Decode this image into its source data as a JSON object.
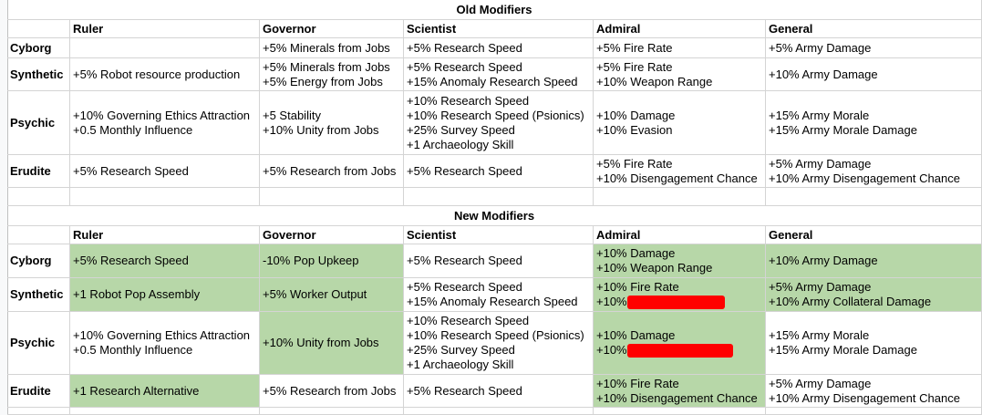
{
  "colors": {
    "highlight": "#b7d7a8",
    "redaction": "#ff0000",
    "gridline": "#d4d4d4"
  },
  "columns": [
    "",
    "Ruler",
    "Governor",
    "Scientist",
    "Admiral",
    "General"
  ],
  "old": {
    "title": "Old Modifiers",
    "rows": [
      {
        "name": "Cyborg",
        "ruler": [],
        "governor": [
          "+5% Minerals from Jobs"
        ],
        "scientist": [
          "+5% Research Speed"
        ],
        "admiral": [
          "+5% Fire Rate"
        ],
        "general": [
          "+5% Army Damage"
        ]
      },
      {
        "name": "Synthetic",
        "ruler": [
          "+5% Robot resource production"
        ],
        "governor": [
          "+5% Minerals from Jobs",
          "+5% Energy from Jobs"
        ],
        "scientist": [
          "+5% Research Speed",
          "+15% Anomaly Research Speed"
        ],
        "admiral": [
          "+5% Fire Rate",
          "+10% Weapon Range"
        ],
        "general": [
          "+10% Army Damage"
        ]
      },
      {
        "name": "Psychic",
        "ruler": [
          "+10% Governing Ethics Attraction",
          "+0.5 Monthly Influence"
        ],
        "governor": [
          "+5 Stability",
          "+10% Unity from Jobs"
        ],
        "scientist": [
          "+10% Research Speed",
          "+10% Research Speed (Psionics)",
          "+25% Survey Speed",
          "+1 Archaeology Skill"
        ],
        "admiral": [
          "+10% Damage",
          "+10% Evasion"
        ],
        "general": [
          "+15% Army Morale",
          "+15% Army Morale Damage"
        ]
      },
      {
        "name": "Erudite",
        "ruler": [
          "+5% Research Speed"
        ],
        "governor": [
          "+5% Research from Jobs"
        ],
        "scientist": [
          "+5% Research Speed"
        ],
        "admiral": [
          "+5% Fire Rate",
          "+10% Disengagement Chance"
        ],
        "general": [
          "+5% Army Damage",
          "+10% Army Disengagement Chance"
        ]
      }
    ]
  },
  "new": {
    "title": "New Modifiers",
    "rows": [
      {
        "name": "Cyborg",
        "ruler": [
          "+5% Research Speed"
        ],
        "governor": [
          "-10% Pop Upkeep"
        ],
        "scientist": [
          "+5% Research Speed"
        ],
        "admiral": [
          "+10% Damage",
          "+10% Weapon Range"
        ],
        "general": [
          "+10% Army Damage"
        ],
        "highlight": {
          "ruler": true,
          "governor": true,
          "scientist": false,
          "admiral": true,
          "general": true
        }
      },
      {
        "name": "Synthetic",
        "ruler": [
          "+1 Robot Pop Assembly"
        ],
        "governor": [
          "+5% Worker Output"
        ],
        "scientist": [
          "+5% Research Speed",
          "+15% Anomaly Research Speed"
        ],
        "admiral": [
          "+10% Fire Rate",
          "+10%"
        ],
        "general": [
          "+5% Army Damage",
          "+10% Army Collateral Damage"
        ],
        "highlight": {
          "ruler": true,
          "governor": true,
          "scientist": false,
          "admiral": true,
          "general": true
        },
        "redacted": {
          "admiral": 1
        }
      },
      {
        "name": "Psychic",
        "ruler": [
          "+10% Governing Ethics Attraction",
          "+0.5 Monthly Influence"
        ],
        "governor": [
          "+10% Unity from Jobs"
        ],
        "scientist": [
          "+10% Research Speed",
          "+10% Research Speed (Psionics)",
          "+25% Survey Speed",
          "+1 Archaeology Skill"
        ],
        "admiral": [
          "+10% Damage",
          "+10%"
        ],
        "general": [
          "+15% Army Morale",
          "+15% Army Morale Damage"
        ],
        "highlight": {
          "ruler": false,
          "governor": true,
          "scientist": false,
          "admiral": true,
          "general": false
        },
        "redacted": {
          "admiral": 1
        }
      },
      {
        "name": "Erudite",
        "ruler": [
          "+1 Research Alternative"
        ],
        "governor": [
          "+5% Research from Jobs"
        ],
        "scientist": [
          "+5% Research Speed"
        ],
        "admiral": [
          "+10% Fire Rate",
          "+10% Disengagement Chance"
        ],
        "general": [
          "+5% Army Damage",
          "+10% Army Disengagement Chance"
        ],
        "highlight": {
          "ruler": true,
          "governor": false,
          "scientist": false,
          "admiral": true,
          "general": false
        }
      }
    ]
  }
}
